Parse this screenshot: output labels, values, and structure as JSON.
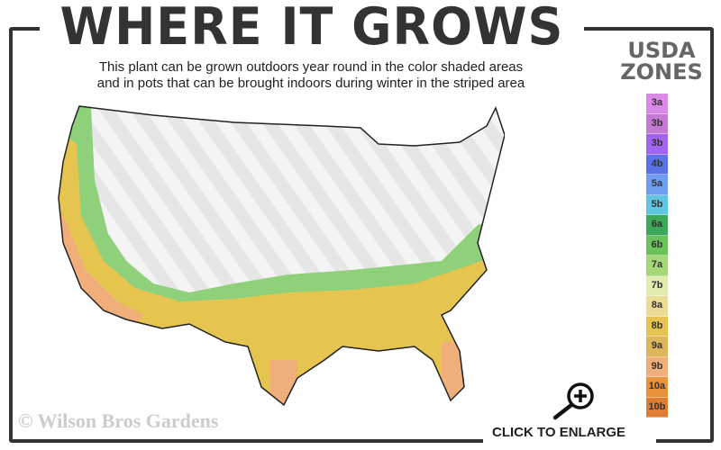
{
  "header": {
    "title": "WHERE IT GROWS",
    "subtitle_line1": "This plant can be grown outdoors year round in the color shaded areas",
    "subtitle_line2": "and in pots that can be brought indoors during winter in the striped area"
  },
  "legend": {
    "title_line1": "USDA",
    "title_line2": "ZONES",
    "zones": [
      {
        "label": "3a",
        "color": "#d989e6"
      },
      {
        "label": "3b",
        "color": "#c47ad4"
      },
      {
        "label": "3b",
        "color": "#a064ee"
      },
      {
        "label": "4b",
        "color": "#5a72e8"
      },
      {
        "label": "5a",
        "color": "#6f9ef0"
      },
      {
        "label": "5b",
        "color": "#5ec6de"
      },
      {
        "label": "6a",
        "color": "#3ea85a"
      },
      {
        "label": "6b",
        "color": "#6cc25a"
      },
      {
        "label": "7a",
        "color": "#a6d87a"
      },
      {
        "label": "7b",
        "color": "#e2ecb0"
      },
      {
        "label": "8a",
        "color": "#eddc98"
      },
      {
        "label": "8b",
        "color": "#e6c450"
      },
      {
        "label": "9a",
        "color": "#dcb658"
      },
      {
        "label": "9b",
        "color": "#efae7a"
      },
      {
        "label": "10a",
        "color": "#e8923a"
      },
      {
        "label": "10b",
        "color": "#e07c34"
      }
    ]
  },
  "watermark": "© Wilson Bros Gardens",
  "enlarge_label": "CLICK TO ENLARGE",
  "icons": {
    "enlarge": "magnifier-plus-icon"
  }
}
